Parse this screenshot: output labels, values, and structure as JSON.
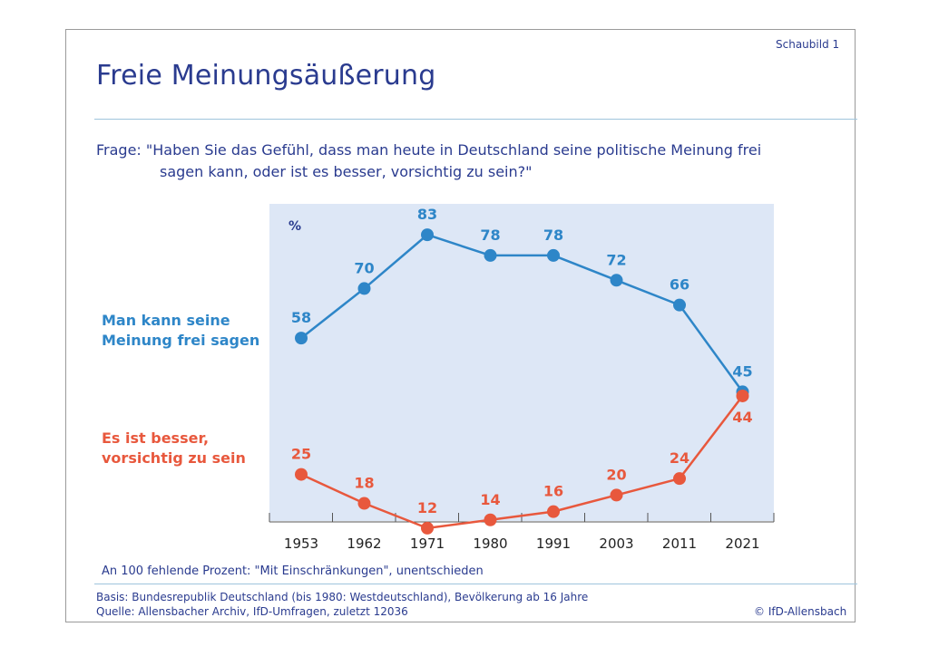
{
  "header": {
    "schaubild": "Schaubild 1",
    "title": "Freie Meinungsäußerung"
  },
  "question": {
    "line1": "Frage: \"Haben Sie das Gefühl, dass man heute in Deutschland seine politische Meinung frei",
    "line2": "sagen kann, oder ist es besser, vorsichtig zu sein?\""
  },
  "series_labels": {
    "blue_line1": "Man kann seine",
    "blue_line2": "Meinung frei sagen",
    "red_line1": "Es ist besser,",
    "red_line2": "vorsichtig zu sein"
  },
  "colors": {
    "blue": "#2e86c8",
    "red": "#e8583d",
    "plot_bg": "#dde7f6",
    "text": "#2a3b8f"
  },
  "chart_data": {
    "type": "line",
    "title": "Freie Meinungsäußerung",
    "ylabel": "%",
    "xlabel": "",
    "categories": [
      "1953",
      "1962",
      "1971",
      "1980",
      "1991",
      "2003",
      "2011",
      "2021"
    ],
    "ylim": [
      0,
      100
    ],
    "grid": false,
    "series": [
      {
        "name": "Man kann seine Meinung frei sagen",
        "color": "#2e86c8",
        "values": [
          58,
          70,
          83,
          78,
          78,
          72,
          66,
          45
        ]
      },
      {
        "name": "Es ist besser, vorsichtig zu sein",
        "color": "#e8583d",
        "values": [
          25,
          18,
          12,
          14,
          16,
          20,
          24,
          44
        ]
      }
    ]
  },
  "footer": {
    "footnote": "An 100 fehlende Prozent: \"Mit Einschränkungen\", unentschieden",
    "basis": "Basis: Bundesrepublik Deutschland (bis 1980: Westdeutschland), Bevölkerung ab 16 Jahre",
    "quelle": "Quelle: Allensbacher Archiv, IfD-Umfragen, zuletzt 12036",
    "copyright": "© IfD-Allensbach"
  }
}
